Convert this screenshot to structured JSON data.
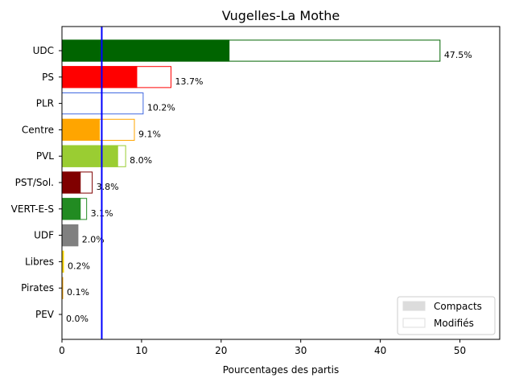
{
  "chart_data": {
    "type": "bar",
    "orientation": "horizontal",
    "title": "Vugelles-La Mothe",
    "xlabel": "Pourcentages des partis",
    "ylabel": "",
    "xlim": [
      0,
      55
    ],
    "xticks": [
      0,
      10,
      20,
      30,
      40,
      50
    ],
    "threshold": 5,
    "threshold_color": "#0000ff",
    "legend_position": "lower right",
    "legend": [
      {
        "label": "Compacts",
        "style": "filled"
      },
      {
        "label": "Modifiés",
        "style": "outline"
      }
    ],
    "categories": [
      "UDC",
      "PS",
      "PLR",
      "Centre",
      "PVL",
      "PST/Sol.",
      "VERT-E-S",
      "UDF",
      "Libres",
      "Pirates",
      "PEV"
    ],
    "series": [
      {
        "name": "Compacts",
        "values": [
          21.0,
          9.4,
          0.0,
          4.7,
          7.0,
          2.3,
          2.3,
          2.0,
          0.2,
          0.1,
          0.0
        ]
      },
      {
        "name": "Modifiés",
        "values": [
          47.5,
          13.7,
          10.2,
          9.1,
          8.0,
          3.8,
          3.1,
          2.0,
          0.2,
          0.1,
          0.0
        ]
      }
    ],
    "value_labels": [
      "47.5%",
      "13.7%",
      "10.2%",
      "9.1%",
      "8.0%",
      "3.8%",
      "3.1%",
      "2.0%",
      "0.2%",
      "0.1%",
      "0.0%"
    ],
    "colors": [
      "#006400",
      "#ff0000",
      "#4169e1",
      "#ffa500",
      "#9acd32",
      "#800000",
      "#228b22",
      "#808080",
      "#ffd700",
      "#ffa500",
      "#ffff00"
    ]
  }
}
